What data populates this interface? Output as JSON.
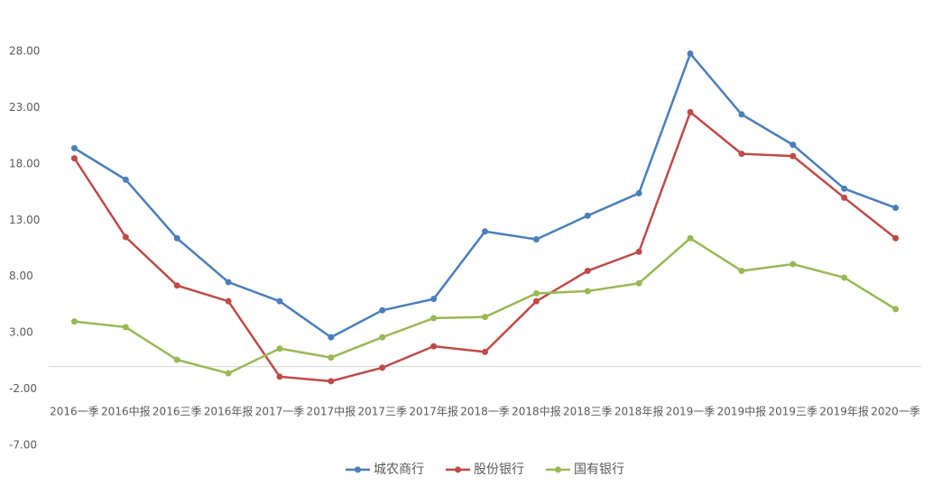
{
  "chart_data": {
    "type": "line",
    "categories": [
      "2016一季",
      "2016中报",
      "2016三季",
      "2016年报",
      "2017一季",
      "2017中报",
      "2017三季",
      "2017年报",
      "2018一季",
      "2018中报",
      "2018三季",
      "2018年报",
      "2019一季",
      "2019中报",
      "2019三季",
      "2019年报",
      "2020一季"
    ],
    "series": [
      {
        "name": "城农商行",
        "color": "#4a7ebb",
        "values": [
          19.4,
          16.6,
          11.4,
          7.5,
          5.8,
          2.6,
          5.0,
          6.0,
          12.0,
          11.3,
          13.4,
          15.4,
          27.8,
          22.4,
          19.7,
          15.8,
          14.1
        ]
      },
      {
        "name": "股份银行",
        "color": "#be4b48",
        "values": [
          18.5,
          11.5,
          7.2,
          5.8,
          -0.9,
          -1.3,
          -0.1,
          1.8,
          1.3,
          5.8,
          8.5,
          10.2,
          22.6,
          18.9,
          18.7,
          15.0,
          11.4
        ]
      },
      {
        "name": "国有银行",
        "color": "#98b954",
        "values": [
          4.0,
          3.5,
          0.6,
          -0.6,
          1.6,
          0.8,
          2.6,
          4.3,
          4.4,
          6.5,
          6.7,
          7.4,
          11.4,
          8.5,
          9.1,
          7.9,
          5.1
        ]
      }
    ],
    "ylim": [
      -7,
      28
    ],
    "yticks": [
      {
        "value": -7,
        "label": "-7.00"
      },
      {
        "value": -2,
        "label": "-2.00"
      },
      {
        "value": 3,
        "label": "3.00"
      },
      {
        "value": 8,
        "label": "8.00"
      },
      {
        "value": 13,
        "label": "13.00"
      },
      {
        "value": 18,
        "label": "18.00"
      },
      {
        "value": 23,
        "label": "23.00"
      },
      {
        "value": 28,
        "label": "28.00"
      }
    ],
    "grid": false,
    "legend": "bottom"
  }
}
